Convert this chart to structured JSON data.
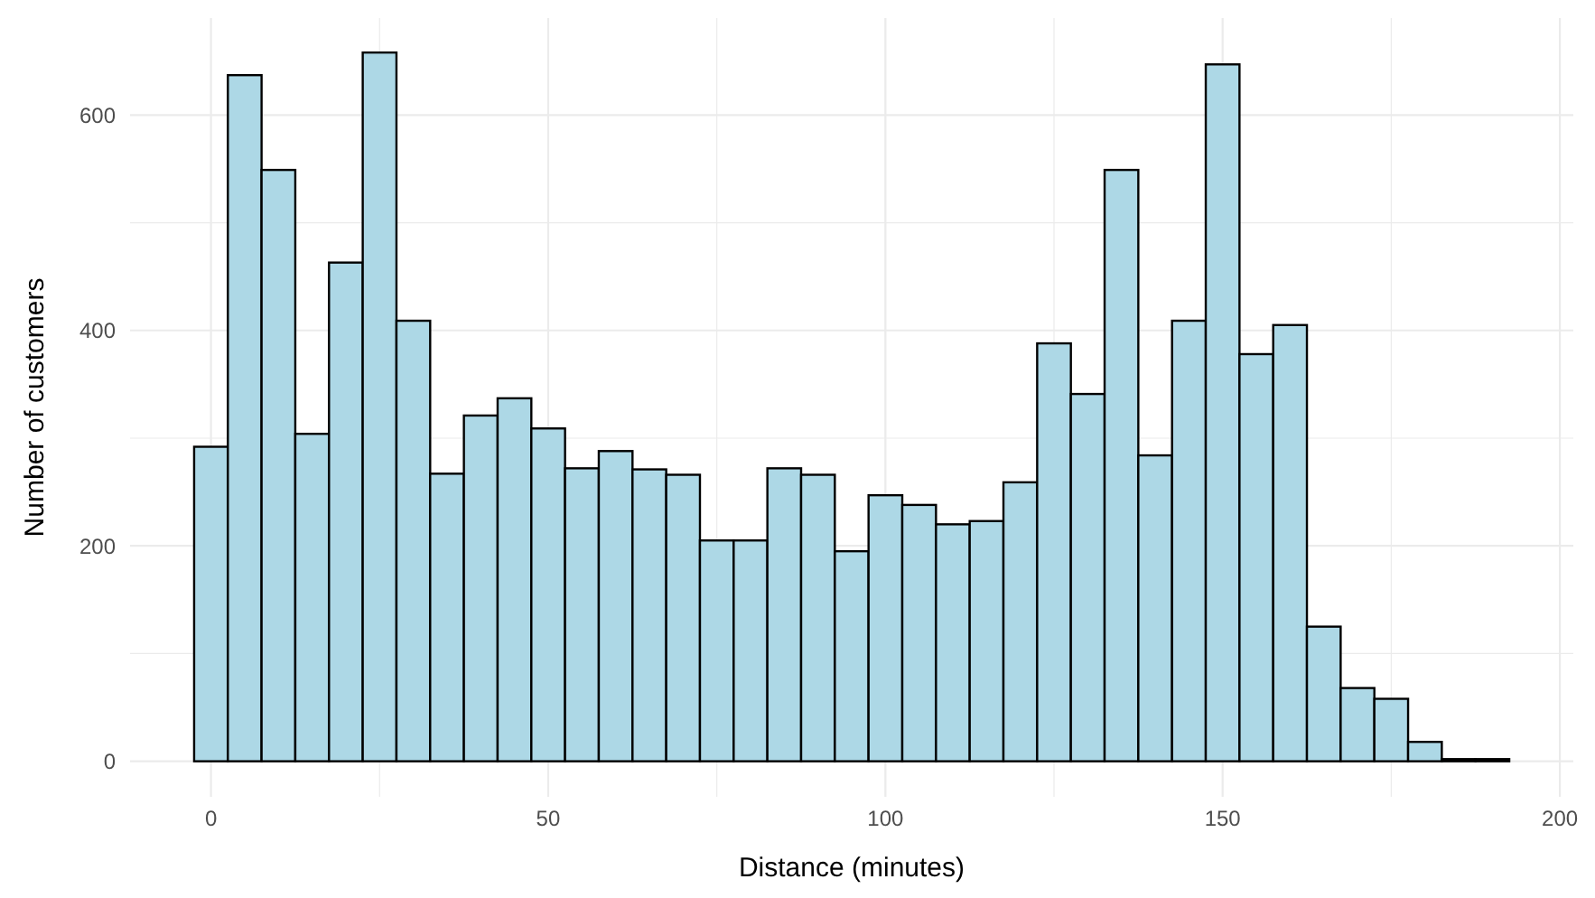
{
  "chart_data": {
    "type": "histogram",
    "xlabel": "Distance (minutes)",
    "ylabel": "Number of customers",
    "color": "#add8e6",
    "bins": [
      -2.5,
      2.5,
      7.5,
      12.5,
      17.5,
      22.5,
      27.5,
      32.5,
      37.5,
      42.5,
      47.5,
      52.5,
      57.5,
      62.5,
      67.5,
      72.5,
      77.5,
      82.5,
      87.5,
      92.5,
      97.5,
      102.5,
      107.5,
      112.5,
      117.5,
      122.5,
      127.5,
      132.5,
      137.5,
      142.5,
      147.5,
      152.5,
      157.5,
      162.5,
      167.5,
      172.5,
      177.5,
      182.5,
      187.5,
      192.5
    ],
    "values": [
      292,
      637,
      549,
      304,
      463,
      658,
      409,
      267,
      321,
      337,
      309,
      272,
      288,
      271,
      266,
      205,
      205,
      272,
      266,
      195,
      247,
      238,
      220,
      223,
      259,
      388,
      341,
      549,
      284,
      409,
      647,
      378,
      405,
      125,
      68,
      58,
      18,
      2,
      2
    ],
    "xlim": [
      -12,
      202
    ],
    "ylim": [
      -33,
      690
    ],
    "xticks": [
      0,
      {
        "value": 25,
        "label": null
      },
      50,
      {
        "value": 75,
        "label": null
      },
      100,
      {
        "value": 125,
        "label": null
      },
      150,
      {
        "value": 175,
        "label": null
      },
      200
    ],
    "yticks": [
      0,
      {
        "value": 100,
        "label": null
      },
      200,
      {
        "value": 300,
        "label": null
      },
      400,
      {
        "value": 500,
        "label": null
      },
      600
    ],
    "grid": true
  }
}
